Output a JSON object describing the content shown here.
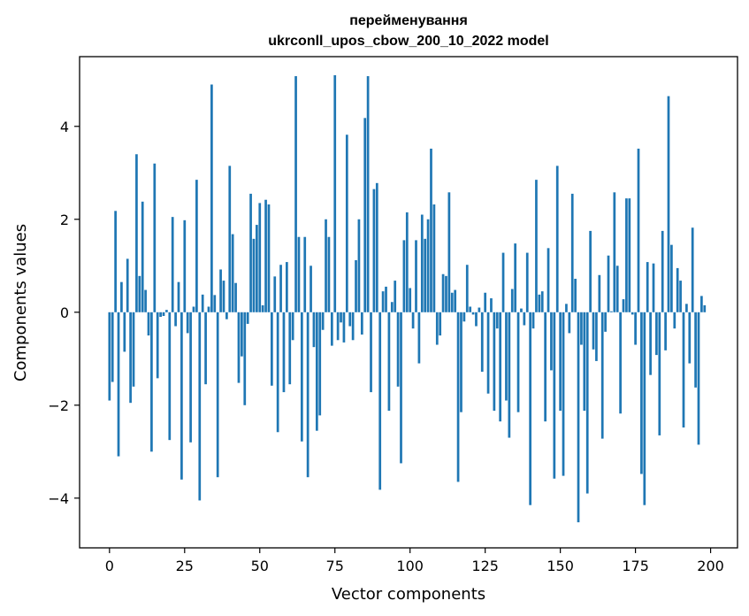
{
  "chart_data": {
    "type": "bar",
    "title_line1": "перейменування",
    "title_line2": "ukrconll_upos_cbow_200_10_2022 model",
    "xlabel": "Vector components",
    "ylabel": "Components values",
    "xlim": [
      -9.95,
      208.95
    ],
    "ylim": [
      -5.07,
      5.5
    ],
    "xticks": [
      0,
      25,
      50,
      75,
      100,
      125,
      150,
      175,
      200
    ],
    "xtick_labels": [
      "0",
      "25",
      "50",
      "75",
      "100",
      "125",
      "150",
      "175",
      "200"
    ],
    "yticks": [
      -4,
      -2,
      0,
      2,
      4
    ],
    "ytick_labels": [
      "−4",
      "−2",
      "0",
      "2",
      "4"
    ],
    "bar_color": "#1f77b4",
    "values": [
      -1.9,
      -1.5,
      2.18,
      -3.1,
      0.65,
      -0.85,
      1.15,
      -1.95,
      -1.6,
      3.4,
      0.78,
      2.38,
      0.48,
      -0.5,
      -3.0,
      3.2,
      -1.42,
      -0.1,
      -0.08,
      0.05,
      -2.75,
      2.05,
      -0.3,
      0.65,
      -3.6,
      1.98,
      -0.45,
      -2.8,
      0.12,
      2.85,
      -4.05,
      0.38,
      -1.55,
      0.12,
      4.9,
      0.37,
      -3.55,
      0.92,
      0.68,
      -0.15,
      3.15,
      1.68,
      0.63,
      -1.52,
      -0.95,
      -2.0,
      -0.25,
      2.55,
      1.58,
      1.88,
      2.35,
      0.15,
      2.42,
      2.32,
      -1.58,
      0.77,
      -2.58,
      1.02,
      -1.72,
      1.08,
      -1.55,
      -0.6,
      5.08,
      1.62,
      -2.78,
      1.62,
      -3.55,
      1.0,
      -0.75,
      -2.55,
      -2.22,
      -0.38,
      2.0,
      1.62,
      -0.72,
      5.1,
      -0.6,
      -0.22,
      -0.65,
      3.82,
      -0.3,
      -0.6,
      1.12,
      2.0,
      -0.48,
      4.18,
      5.08,
      -1.72,
      2.65,
      2.78,
      -3.82,
      0.45,
      0.55,
      -2.12,
      0.22,
      0.68,
      -1.6,
      -3.25,
      1.55,
      2.15,
      0.52,
      -0.35,
      1.55,
      -1.1,
      2.1,
      1.58,
      2.0,
      3.52,
      2.32,
      -0.7,
      -0.5,
      0.82,
      0.78,
      2.58,
      0.42,
      0.48,
      -3.65,
      -2.15,
      -0.2,
      1.02,
      0.12,
      -0.05,
      -0.3,
      0.1,
      -1.28,
      0.42,
      -1.75,
      0.3,
      -2.12,
      -0.35,
      -2.35,
      1.28,
      -1.9,
      -2.7,
      0.5,
      1.48,
      -2.15,
      0.08,
      -0.28,
      1.28,
      -4.15,
      -0.35,
      2.85,
      0.38,
      0.45,
      -2.35,
      1.38,
      -1.25,
      -3.58,
      3.15,
      -2.12,
      -3.52,
      0.18,
      -0.45,
      2.55,
      0.72,
      -4.52,
      -0.7,
      -2.12,
      -3.9,
      1.75,
      -0.8,
      -1.05,
      0.8,
      -2.72,
      -0.42,
      1.22,
      0.02,
      2.58,
      1.0,
      -2.18,
      0.28,
      2.45,
      2.45,
      -0.05,
      -0.7,
      3.52,
      -3.48,
      -4.15,
      1.08,
      -1.35,
      1.05,
      -0.92,
      -2.65,
      1.75,
      -0.82,
      4.65,
      1.45,
      -0.35,
      0.95,
      0.68,
      -2.48,
      0.18,
      -1.1,
      1.82,
      -1.62,
      -2.85,
      0.35,
      0.15
    ]
  }
}
